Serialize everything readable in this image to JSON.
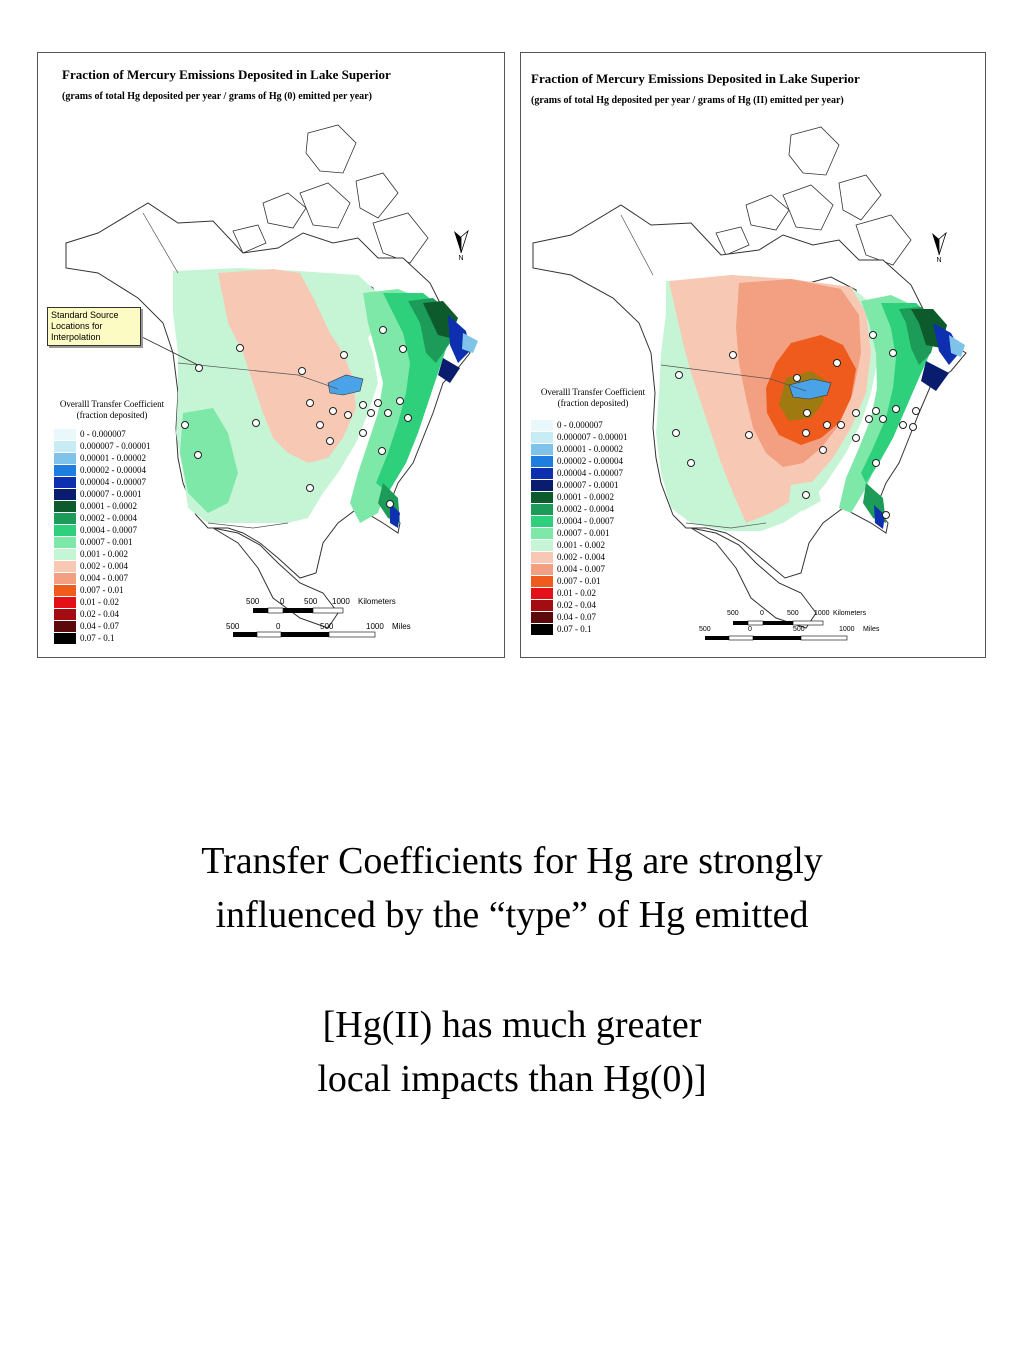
{
  "panels": [
    {
      "title": "Fraction of Mercury Emissions Deposited in Lake Superior",
      "subtitle": "(grams of total Hg deposited per year / grams of Hg (0) emitted per year)",
      "callout": "Standard Source Locations for Interpolation",
      "legend_title_1": "Overalll Transfer Coefficient",
      "legend_title_2": "(fraction deposited)"
    },
    {
      "title": "Fraction of Mercury Emissions Deposited in Lake Superior",
      "subtitle": "(grams of total Hg deposited per year / grams of Hg (II) emitted per year)",
      "legend_title_1": "Overalll Transfer Coefficient",
      "legend_title_2": "(fraction deposited)"
    }
  ],
  "legend": [
    {
      "label": "0 - 0.000007",
      "color": "#e8f8fb"
    },
    {
      "label": "0.000007 - 0.00001",
      "color": "#c7ecf4"
    },
    {
      "label": "0.00001 - 0.00002",
      "color": "#7fc3ea"
    },
    {
      "label": "0.00002 - 0.00004",
      "color": "#1e7ee0"
    },
    {
      "label": "0.00004 - 0.00007",
      "color": "#0d2fb0"
    },
    {
      "label": "0.00007 - 0.0001",
      "color": "#0a1c6e"
    },
    {
      "label": "0.0001 - 0.0002",
      "color": "#0d5a2c"
    },
    {
      "label": "0.0002 - 0.0004",
      "color": "#1c9c58"
    },
    {
      "label": "0.0004 - 0.0007",
      "color": "#2fd07c"
    },
    {
      "label": "0.0007 - 0.001",
      "color": "#7ee8a8"
    },
    {
      "label": "0.001 - 0.002",
      "color": "#c6f5d6"
    },
    {
      "label": "0.002 - 0.004",
      "color": "#f7c9b4"
    },
    {
      "label": "0.004 - 0.007",
      "color": "#f2a081"
    },
    {
      "label": "0.007 - 0.01",
      "color": "#ee5b1c"
    },
    {
      "label": "0.01 - 0.02",
      "color": "#e3101a"
    },
    {
      "label": "0.02 - 0.04",
      "color": "#a30d12"
    },
    {
      "label": "0.04 - 0.07",
      "color": "#5a0a0a"
    },
    {
      "label": "0.07 - 0.1",
      "color": "#000000"
    }
  ],
  "scale": {
    "km_ticks": [
      "500",
      "0",
      "500",
      "1000"
    ],
    "km_unit": "Kilometers",
    "mi_ticks": [
      "500",
      "0",
      "500",
      "1000"
    ],
    "mi_unit": "Miles"
  },
  "north_label": "N",
  "caption": {
    "line1": "Transfer Coefficients for Hg are strongly",
    "line2": "influenced by the “type” of Hg emitted",
    "line3": "[Hg(II) has much greater",
    "line4": "local impacts than Hg(0)]"
  }
}
